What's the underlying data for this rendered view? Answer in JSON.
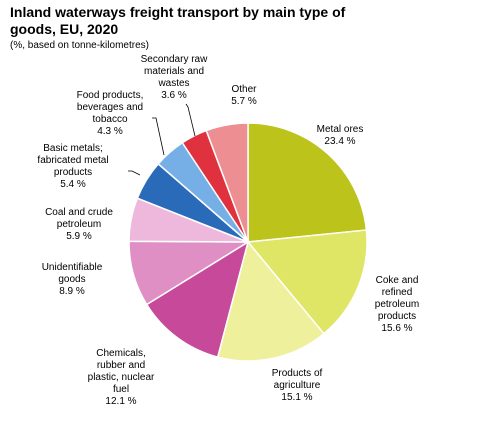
{
  "chart_data": {
    "type": "pie",
    "title_lines": [
      "Inland waterways freight transport by main type of",
      "goods, EU, 2020"
    ],
    "subtitle": "(%, based on tonne-kilometres)",
    "unit": "%",
    "slices": [
      {
        "category_lines": [
          "Metal ores"
        ],
        "value": 23.4,
        "value_label": "23.4 %",
        "color": "#bcc41c"
      },
      {
        "category_lines": [
          "Coke and",
          "refined",
          "petroleum",
          "products"
        ],
        "value": 15.6,
        "value_label": "15.6 %",
        "color": "#dfe564"
      },
      {
        "category_lines": [
          "Products of",
          "agriculture"
        ],
        "value": 15.1,
        "value_label": "15.1 %",
        "color": "#eef09c"
      },
      {
        "category_lines": [
          "Chemicals,",
          "rubber and",
          "plastic, nuclear",
          "fuel"
        ],
        "value": 12.1,
        "value_label": "12.1 %",
        "color": "#c6499a"
      },
      {
        "category_lines": [
          "Unidentifiable",
          "goods"
        ],
        "value": 8.9,
        "value_label": "8.9 %",
        "color": "#df8fc4"
      },
      {
        "category_lines": [
          "Coal and crude",
          "petroleum"
        ],
        "value": 5.9,
        "value_label": "5.9 %",
        "color": "#eeb8dc"
      },
      {
        "category_lines": [
          "Basic metals;",
          "fabricated metal",
          "products"
        ],
        "value": 5.4,
        "value_label": "5.4 %",
        "color": "#2a6bb9"
      },
      {
        "category_lines": [
          "Food products,",
          "beverages  and",
          "tobacco"
        ],
        "value": 4.3,
        "value_label": "4.3 %",
        "color": "#76aee6"
      },
      {
        "category_lines": [
          "Secondary raw",
          "materials and",
          "wastes"
        ],
        "value": 3.6,
        "value_label": "3.6 %",
        "color": "#e0323e"
      },
      {
        "category_lines": [
          "Other"
        ],
        "value": 5.7,
        "value_label": "5.7 %",
        "color": "#ec8e92"
      }
    ]
  }
}
